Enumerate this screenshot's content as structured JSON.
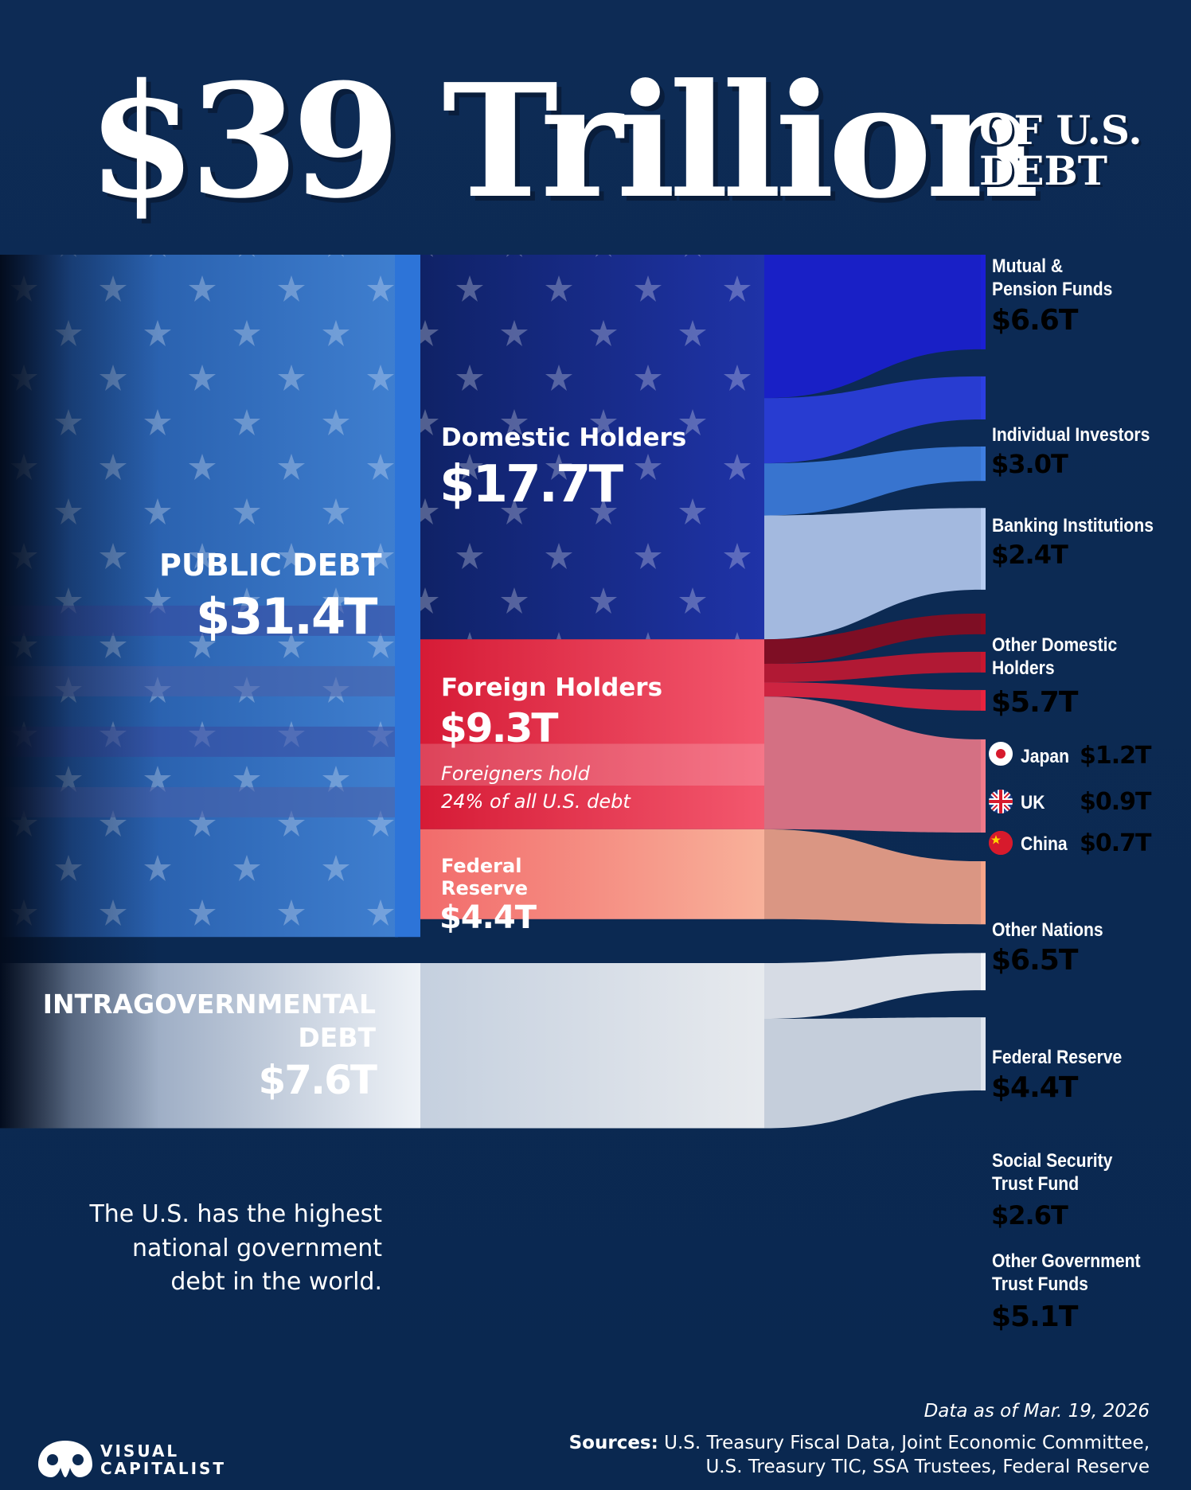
{
  "header": {
    "title_main": "$39 Trillion",
    "title_sub_line1": "OF U.S.",
    "title_sub_line2": "DEBT"
  },
  "chart_data": {
    "type": "sankey",
    "total": 39,
    "unit": "$T",
    "nodes": [
      {
        "id": "public",
        "label": "PUBLIC DEBT",
        "value_label": "$31.4T",
        "value": 31.4
      },
      {
        "id": "intra",
        "label": "INTRAGOVERNMENTAL DEBT",
        "label_line1": "INTRAGOVERNMENTAL",
        "label_line2": "DEBT",
        "value_label": "$7.6T",
        "value": 7.6
      },
      {
        "id": "domestic",
        "label": "Domestic Holders",
        "value_label": "$17.7T",
        "value": 17.7
      },
      {
        "id": "foreign",
        "label": "Foreign Holders",
        "value_label": "$9.3T",
        "value": 9.3
      },
      {
        "id": "fed",
        "label": "Federal Reserve",
        "label_line1": "Federal",
        "label_line2": "Reserve",
        "value_label": "$4.4T",
        "value": 4.4
      }
    ],
    "links": [
      {
        "source": "public",
        "target": "domestic",
        "value": 17.7
      },
      {
        "source": "public",
        "target": "foreign",
        "value": 9.3
      },
      {
        "source": "public",
        "target": "fed",
        "value": 4.4
      },
      {
        "source": "domestic",
        "target": "Mutual & Pension Funds",
        "value": 6.6
      },
      {
        "source": "domestic",
        "target": "Individual Investors",
        "value": 3.0
      },
      {
        "source": "domestic",
        "target": "Banking Institutions",
        "value": 2.4
      },
      {
        "source": "domestic",
        "target": "Other Domestic Holders",
        "value": 5.7
      },
      {
        "source": "foreign",
        "target": "Japan",
        "value": 1.2
      },
      {
        "source": "foreign",
        "target": "UK",
        "value": 0.9
      },
      {
        "source": "foreign",
        "target": "China",
        "value": 0.7
      },
      {
        "source": "foreign",
        "target": "Other Nations",
        "value": 6.5
      },
      {
        "source": "fed",
        "target": "Federal Reserve",
        "value": 4.4
      },
      {
        "source": "intra",
        "target": "Social Security Trust Fund",
        "value": 2.6
      },
      {
        "source": "intra",
        "target": "Other Government Trust Funds",
        "value": 5.1
      }
    ],
    "destinations": [
      {
        "key": "mutual",
        "line1": "Mutual &",
        "line2": "Pension Funds",
        "value_label": "$6.6T",
        "value": 6.6,
        "color": "#1b1fd6",
        "value_color": "#5b8cf2"
      },
      {
        "key": "individual",
        "line1": "Individual Investors",
        "line2": "",
        "value_label": "$3.0T",
        "value": 3.0,
        "color": "#2c3fe3",
        "value_color": "#5b8cf2"
      },
      {
        "key": "banking",
        "line1": "Banking Institutions",
        "line2": "",
        "value_label": "$2.4T",
        "value": 2.4,
        "color": "#3f7ee0",
        "value_color": "#8fb6f2"
      },
      {
        "key": "other_domestic",
        "line1": "Other Domestic",
        "line2": "Holders",
        "value_label": "$5.7T",
        "value": 5.7,
        "color": "#b8cdf2",
        "value_color": "#a9c6f2"
      },
      {
        "key": "japan",
        "line1": "Japan",
        "line2": "",
        "value_label": "$1.2T",
        "value": 1.2,
        "color": "#8e0a1e",
        "value_color": "#e8233f"
      },
      {
        "key": "uk",
        "line1": "UK",
        "line2": "",
        "value_label": "$0.9T",
        "value": 0.9,
        "color": "#c81730",
        "value_color": "#e8233f"
      },
      {
        "key": "china",
        "line1": "China",
        "line2": "",
        "value_label": "$0.7T",
        "value": 0.7,
        "color": "#e8233f",
        "value_color": "#e8233f"
      },
      {
        "key": "other_nations",
        "line1": "Other Nations",
        "line2": "",
        "value_label": "$6.5T",
        "value": 6.5,
        "color": "#f07a8a",
        "value_color": "#f39aa6"
      },
      {
        "key": "fed_reserve",
        "line1": "Federal Reserve",
        "line2": "",
        "value_label": "$4.4T",
        "value": 4.4,
        "color": "#f7a58a",
        "value_color": "#fbc0ad"
      },
      {
        "key": "social_security",
        "line1": "Social Security",
        "line2": "Trust Fund",
        "value_label": "$2.6T",
        "value": 2.6,
        "color": "#f2f4f8",
        "value_color": "#ffffff"
      },
      {
        "key": "other_gov",
        "line1": "Other Government",
        "line2": "Trust Funds",
        "value_label": "$5.1T",
        "value": 5.1,
        "color": "#dfe5ee",
        "value_color": "#dfe5ee"
      }
    ]
  },
  "annotations": {
    "foreign_note_line1": "Foreigners hold",
    "foreign_note_line2": "24% of all U.S. debt",
    "side_note_line1": "The U.S. has the highest",
    "side_note_line2": "national government",
    "side_note_line3": "debt in the world."
  },
  "footer": {
    "data_as_of": "Data as of Mar. 19, 2026",
    "sources_label": "Sources:",
    "sources_line1": "U.S. Treasury Fiscal Data, Joint Economic Committee,",
    "sources_line2": "U.S. Treasury TIC, SSA Trustees, Federal Reserve",
    "logo_line1": "VISUAL",
    "logo_line2": "CAPITALIST"
  },
  "colors": {
    "background": "#0c2a52",
    "domestic_blue": "#1b2f8f",
    "foreign_red": "#e8233f",
    "fed_salmon": "#f7a58a",
    "intra_white": "#e9eef5",
    "divider_blue": "#2d74d8"
  }
}
